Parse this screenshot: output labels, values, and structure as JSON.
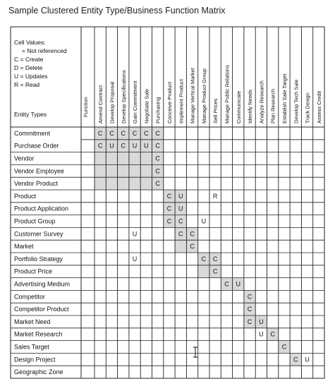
{
  "title": "Sample Clustered Entity Type/Business Function Matrix",
  "legend": {
    "heading": "Cell Values:",
    "lines": [
      "= Not referenced",
      "C  =  Create",
      "D  =  Delete",
      "U  =  Updates",
      "R  =  Read"
    ],
    "entity_types_label": "Entity Types"
  },
  "function_label": "Function",
  "columns": [
    "Amend Contract",
    "Develop Proposal",
    "Develop Specifications",
    "Gain Commitment",
    "Negotiate Sale",
    "Purchasing",
    "Conceive Product",
    "Implement Product",
    "Manage Vertical Market",
    "Manage Product Group",
    "Sell Prices",
    "Manage Public Relations",
    "Communicate",
    "Identify Needs",
    "Analyze Research",
    "Plan Research",
    "Establish Sale Target",
    "Develop Tech Sale",
    "Track Design",
    "Assess Credit"
  ],
  "rows": [
    {
      "name": "Commitment",
      "cells": {
        "0": "C",
        "1": "C",
        "2": "C",
        "3": "C",
        "4": "C",
        "5": "C"
      }
    },
    {
      "name": "Purchase Order",
      "cells": {
        "0": "C",
        "1": "U",
        "2": "C",
        "3": "U",
        "4": "U",
        "5": "C"
      }
    },
    {
      "name": "Vendor",
      "cells": {
        "5": "C"
      }
    },
    {
      "name": "Vendor Employee",
      "cells": {
        "5": "C"
      }
    },
    {
      "name": "Vendor Product",
      "cells": {
        "5": "C"
      }
    },
    {
      "name": "Product",
      "cells": {
        "6": "C",
        "7": "U",
        "10": "R"
      }
    },
    {
      "name": "Product Application",
      "cells": {
        "6": "C",
        "7": "U"
      }
    },
    {
      "name": "Product Group",
      "cells": {
        "6": "C",
        "7": "C",
        "9": "U"
      }
    },
    {
      "name": "Customer Survey",
      "cells": {
        "3": "U",
        "7": "C",
        "8": "C"
      }
    },
    {
      "name": "Market",
      "cells": {
        "8": "C"
      }
    },
    {
      "name": "Portfolio Strategy",
      "cells": {
        "3": "U",
        "9": "C",
        "10": "C"
      }
    },
    {
      "name": "Product Price",
      "cells": {
        "10": "C"
      }
    },
    {
      "name": "Advertising Medium",
      "cells": {
        "11": "C",
        "12": "U"
      }
    },
    {
      "name": "Competitor",
      "cells": {
        "13": "C"
      }
    },
    {
      "name": "Competitor Product",
      "cells": {
        "13": "C"
      }
    },
    {
      "name": "Market Need",
      "cells": {
        "13": "C",
        "14": "U"
      }
    },
    {
      "name": "Market Research",
      "cells": {
        "14": "U",
        "15": "C"
      }
    },
    {
      "name": "Sales Target",
      "cells": {
        "16": "C"
      }
    },
    {
      "name": "Design Project",
      "cells": {
        "17": "C",
        "18": "U"
      }
    },
    {
      "name": "Geographic Zone",
      "cells": {}
    }
  ],
  "clusters": [
    {
      "row_start": 0,
      "row_end": 4,
      "col_start": 0,
      "col_end": 5
    },
    {
      "row_start": 5,
      "row_end": 7,
      "col_start": 6,
      "col_end": 7
    },
    {
      "row_start": 8,
      "row_end": 9,
      "col_start": 7,
      "col_end": 8
    },
    {
      "row_start": 10,
      "row_end": 11,
      "col_start": 9,
      "col_end": 10
    },
    {
      "row_start": 12,
      "row_end": 12,
      "col_start": 11,
      "col_end": 12
    },
    {
      "row_start": 13,
      "row_end": 15,
      "col_start": 13,
      "col_end": 13
    },
    {
      "row_start": 15,
      "row_end": 15,
      "col_start": 14,
      "col_end": 14
    },
    {
      "row_start": 16,
      "row_end": 16,
      "col_start": 15,
      "col_end": 15
    },
    {
      "row_start": 17,
      "row_end": 17,
      "col_start": 16,
      "col_end": 16
    },
    {
      "row_start": 18,
      "row_end": 18,
      "col_start": 17,
      "col_end": 17
    }
  ],
  "colors": {
    "cluster_fill": "#d9d9d9",
    "grid": "#222222"
  }
}
